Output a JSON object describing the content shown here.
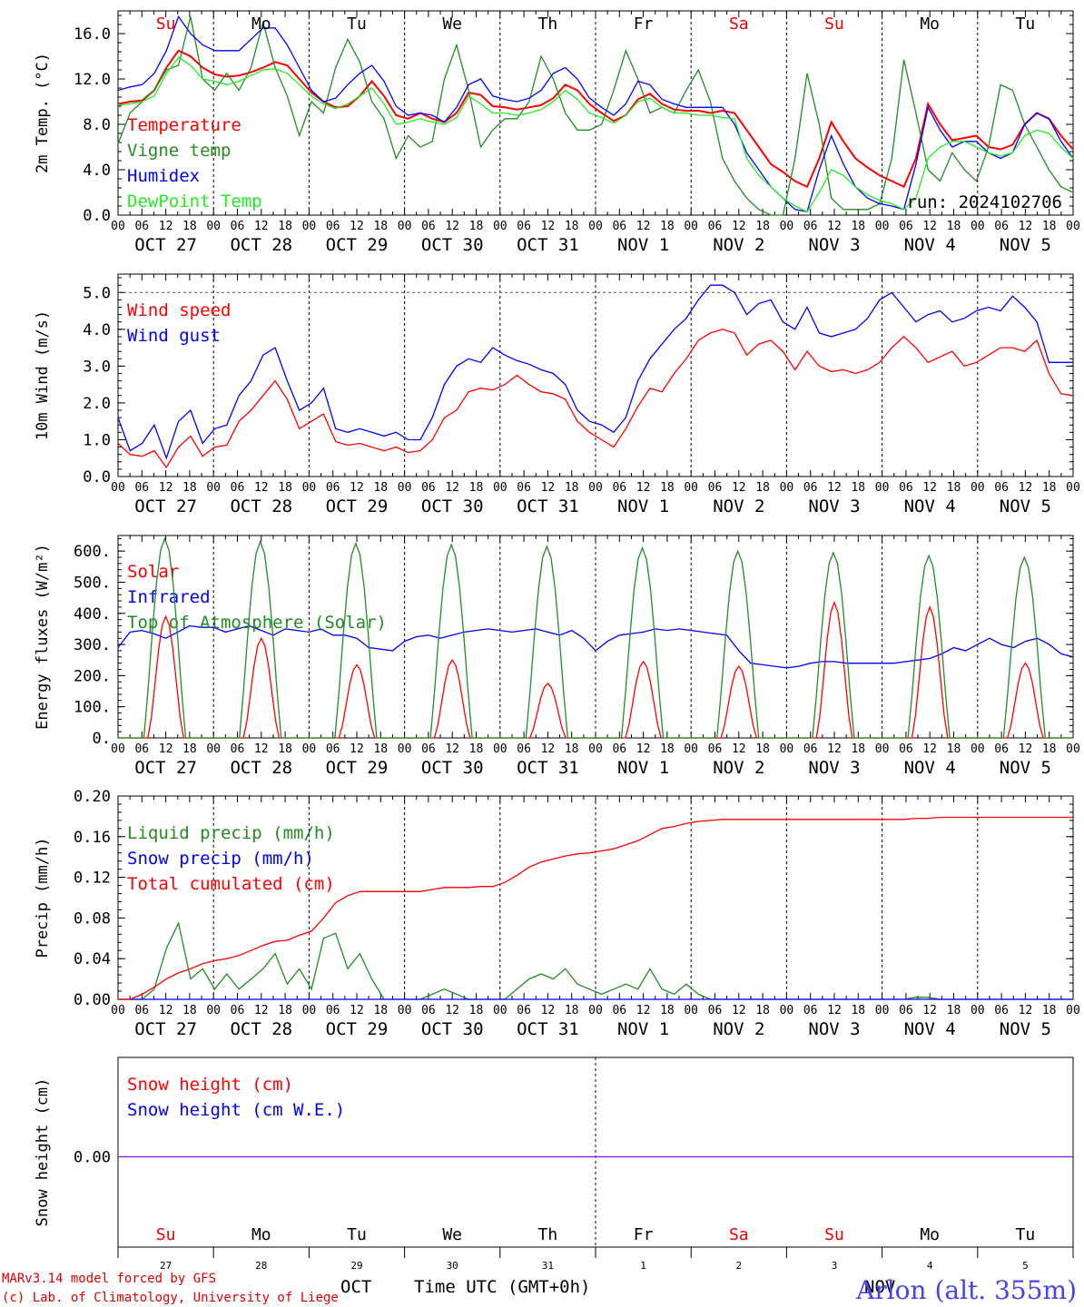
{
  "chart_data": [
    {
      "type": "line",
      "ylabel": "2m Temp. (°C)",
      "ylim": [
        0,
        18
      ],
      "yticks": [
        "0.0",
        "4.0",
        "8.0",
        "12.0",
        "16.0"
      ],
      "day_labels": [
        "Su",
        "Mo",
        "Tu",
        "We",
        "Th",
        "Fr",
        "Sa",
        "Su",
        "Mo",
        "Tu"
      ],
      "annotation": "run: 2024102706",
      "series": [
        {
          "name": "Temperature",
          "color": "#ff0000",
          "values": [
            9.8,
            10.0,
            10.1,
            11.0,
            13.0,
            14.5,
            14.0,
            13.0,
            12.4,
            12.2,
            12.3,
            12.6,
            13.0,
            13.5,
            13.2,
            12.0,
            10.8,
            10.0,
            9.5,
            9.6,
            10.5,
            11.8,
            10.5,
            8.8,
            8.5,
            9.0,
            8.5,
            8.2,
            9.0,
            10.8,
            10.6,
            9.6,
            9.5,
            9.3,
            9.5,
            9.7,
            10.3,
            11.5,
            11.0,
            9.8,
            9.0,
            8.3,
            8.8,
            10.2,
            10.7,
            9.8,
            9.3,
            9.2,
            9.2,
            9.0,
            9.2,
            9.0,
            7.5,
            6.0,
            4.5,
            3.8,
            3.0,
            2.5,
            5.0,
            8.2,
            6.5,
            5.0,
            4.2,
            3.5,
            3.0,
            2.5,
            5.0,
            9.8,
            8.0,
            6.6,
            6.8,
            7.0,
            6.0,
            5.8,
            6.2,
            8.0,
            9.0,
            8.5,
            7.0,
            5.8
          ]
        },
        {
          "name": "Vigne temp",
          "color": "#228b22",
          "values": [
            6.3,
            9.0,
            10.0,
            11.0,
            12.8,
            13.2,
            17.5,
            12.0,
            11.0,
            12.5,
            11.0,
            13.0,
            17.0,
            13.0,
            10.5,
            7.0,
            10.0,
            9.0,
            13.0,
            15.5,
            13.5,
            10.0,
            8.5,
            5.0,
            7.0,
            6.0,
            6.5,
            12.0,
            15.0,
            11.0,
            6.0,
            7.5,
            8.5,
            8.5,
            10.0,
            14.0,
            12.0,
            9.0,
            7.5,
            7.5,
            8.0,
            11.0,
            14.5,
            12.0,
            9.0,
            9.5,
            9.0,
            11.0,
            12.8,
            10.0,
            5.0,
            3.0,
            1.5,
            0.5,
            0.0,
            0.0,
            5.0,
            12.5,
            8.0,
            1.5,
            0.5,
            0.5,
            0.5,
            1.0,
            5.0,
            13.7,
            9.0,
            4.0,
            3.0,
            5.5,
            4.0,
            3.0,
            6.0,
            11.5,
            11.0,
            8.0,
            6.0,
            4.0,
            2.5,
            2.0
          ]
        },
        {
          "name": "Humidex",
          "color": "#0000ff",
          "values": [
            11.0,
            11.3,
            11.5,
            12.5,
            14.5,
            17.5,
            16.0,
            15.0,
            14.5,
            14.5,
            14.5,
            15.5,
            16.5,
            16.5,
            15.0,
            13.0,
            11.0,
            10.0,
            10.3,
            11.5,
            12.5,
            13.2,
            11.8,
            9.6,
            8.8,
            9.0,
            8.8,
            8.2,
            9.5,
            11.5,
            12.0,
            10.5,
            10.2,
            10.0,
            10.3,
            11.0,
            12.5,
            13.0,
            12.0,
            10.3,
            9.5,
            8.8,
            9.8,
            11.8,
            11.5,
            10.2,
            9.8,
            9.5,
            9.5,
            9.5,
            9.5,
            8.0,
            5.5,
            4.0,
            2.5,
            1.5,
            0.5,
            0.3,
            4.0,
            7.0,
            4.5,
            2.5,
            1.5,
            1.0,
            0.8,
            0.5,
            4.5,
            9.5,
            7.5,
            6.0,
            6.5,
            6.5,
            5.5,
            5.0,
            5.5,
            8.0,
            9.0,
            8.5,
            6.5,
            5.0
          ]
        },
        {
          "name": "DewPoint Temp",
          "color": "#22ee22",
          "values": [
            9.7,
            9.8,
            10.0,
            10.5,
            12.5,
            13.9,
            13.2,
            12.0,
            11.8,
            11.5,
            11.8,
            12.3,
            12.8,
            12.9,
            12.5,
            11.5,
            10.5,
            9.8,
            9.4,
            9.8,
            10.5,
            11.2,
            9.8,
            8.0,
            8.2,
            8.5,
            8.2,
            8.0,
            8.6,
            10.5,
            9.8,
            9.0,
            9.0,
            8.8,
            9.0,
            9.3,
            10.0,
            11.0,
            10.2,
            9.0,
            8.6,
            8.1,
            8.8,
            10.0,
            10.3,
            9.5,
            9.0,
            9.0,
            8.8,
            8.8,
            8.6,
            8.5,
            5.0,
            3.5,
            2.5,
            1.5,
            0.8,
            0.3,
            2.0,
            4.0,
            3.5,
            2.5,
            1.8,
            1.3,
            1.0,
            0.5,
            1.5,
            5.0,
            6.0,
            6.5,
            6.5,
            6.0,
            5.5,
            5.2,
            5.5,
            7.0,
            7.5,
            7.2,
            6.0,
            5.0
          ]
        }
      ]
    },
    {
      "type": "line",
      "ylabel": "10m Wind (m/s)",
      "ylim": [
        0,
        5.5
      ],
      "yticks": [
        "0.0",
        "1.0",
        "2.0",
        "3.0",
        "4.0",
        "5.0"
      ],
      "ref_line": 5.0,
      "series": [
        {
          "name": "Wind speed",
          "color": "#ff0000",
          "values": [
            0.9,
            0.6,
            0.55,
            0.7,
            0.25,
            0.8,
            1.1,
            0.55,
            0.8,
            0.85,
            1.5,
            1.8,
            2.2,
            2.6,
            2.1,
            1.3,
            1.5,
            1.7,
            0.95,
            0.85,
            0.9,
            0.8,
            0.7,
            0.8,
            0.65,
            0.7,
            1.0,
            1.6,
            1.8,
            2.3,
            2.4,
            2.35,
            2.5,
            2.75,
            2.5,
            2.3,
            2.25,
            2.1,
            1.5,
            1.2,
            1.0,
            0.8,
            1.3,
            1.9,
            2.4,
            2.3,
            2.8,
            3.2,
            3.7,
            3.9,
            4.0,
            3.9,
            3.3,
            3.6,
            3.7,
            3.4,
            2.9,
            3.4,
            3.0,
            2.85,
            2.9,
            2.8,
            2.9,
            3.1,
            3.5,
            3.8,
            3.5,
            3.1,
            3.25,
            3.4,
            3.0,
            3.1,
            3.3,
            3.5,
            3.5,
            3.4,
            3.7,
            2.8,
            2.25,
            2.2
          ]
        },
        {
          "name": "Wind gust",
          "color": "#0000ff",
          "values": [
            1.6,
            0.7,
            0.9,
            1.4,
            0.5,
            1.5,
            1.8,
            0.9,
            1.3,
            1.4,
            2.2,
            2.6,
            3.3,
            3.5,
            2.6,
            1.8,
            2.0,
            2.4,
            1.3,
            1.2,
            1.3,
            1.2,
            1.1,
            1.2,
            1.0,
            1.0,
            1.6,
            2.5,
            3.0,
            3.2,
            3.1,
            3.5,
            3.3,
            3.15,
            3.05,
            2.9,
            2.8,
            2.5,
            1.8,
            1.5,
            1.4,
            1.2,
            1.6,
            2.6,
            3.2,
            3.6,
            4.0,
            4.3,
            4.8,
            5.2,
            5.2,
            5.0,
            4.4,
            4.7,
            4.8,
            4.2,
            4.0,
            4.6,
            3.9,
            3.8,
            3.9,
            4.0,
            4.3,
            4.8,
            5.0,
            4.6,
            4.2,
            4.4,
            4.5,
            4.2,
            4.3,
            4.5,
            4.6,
            4.5,
            4.9,
            4.6,
            4.2,
            3.1,
            3.1,
            3.1
          ]
        }
      ]
    },
    {
      "type": "line",
      "ylabel": "Energy fluxes (W/m²)",
      "ylim": [
        0,
        650
      ],
      "yticks": [
        "0.",
        "100.",
        "200.",
        "300.",
        "400.",
        "500.",
        "600."
      ],
      "series": [
        {
          "name": "Solar",
          "color": "#ff0000",
          "peaks": [
            390,
            320,
            235,
            250,
            175,
            245,
            230,
            435,
            420,
            240
          ]
        },
        {
          "name": "Infrared",
          "color": "#0000ff",
          "values": [
            290,
            340,
            345,
            335,
            320,
            340,
            360,
            355,
            355,
            340,
            350,
            360,
            345,
            330,
            350,
            345,
            340,
            350,
            330,
            330,
            320,
            290,
            285,
            280,
            310,
            325,
            330,
            320,
            330,
            340,
            345,
            350,
            345,
            340,
            345,
            350,
            340,
            330,
            345,
            320,
            280,
            310,
            330,
            335,
            340,
            350,
            345,
            350,
            345,
            340,
            335,
            330,
            280,
            240,
            235,
            230,
            225,
            230,
            240,
            245,
            245,
            240,
            240,
            240,
            240,
            240,
            245,
            250,
            255,
            270,
            290,
            280,
            300,
            320,
            300,
            290,
            310,
            320,
            300,
            270,
            260
          ]
        },
        {
          "name": "Top of Atmosphere (Solar)",
          "color": "#228b22",
          "peaks": [
            640,
            630,
            625,
            620,
            615,
            610,
            600,
            595,
            585,
            580
          ]
        }
      ]
    },
    {
      "type": "line",
      "ylabel": "Precip (mm/h)",
      "ylim": [
        0,
        0.2
      ],
      "yticks": [
        "0.00",
        "0.04",
        "0.08",
        "0.12",
        "0.16",
        "0.20"
      ],
      "series": [
        {
          "name": "Liquid precip (mm/h)",
          "color": "#228b22",
          "values": [
            0.0,
            0.0,
            0.0,
            0.01,
            0.05,
            0.075,
            0.02,
            0.03,
            0.01,
            0.025,
            0.01,
            0.02,
            0.03,
            0.045,
            0.015,
            0.03,
            0.01,
            0.06,
            0.065,
            0.03,
            0.045,
            0.02,
            0.0,
            0.0,
            0.0,
            0.0,
            0.005,
            0.01,
            0.005,
            0.0,
            0.0,
            0.0,
            0.0,
            0.01,
            0.02,
            0.025,
            0.02,
            0.03,
            0.015,
            0.01,
            0.005,
            0.01,
            0.015,
            0.01,
            0.03,
            0.01,
            0.005,
            0.015,
            0.005,
            0.0,
            0.0,
            0.0,
            0.0,
            0.0,
            0.0,
            0.0,
            0.0,
            0.0,
            0.0,
            0.0,
            0.0,
            0.0,
            0.0,
            0.0,
            0.0,
            0.0,
            0.002,
            0.002,
            0.0,
            0.0,
            0.0,
            0.0,
            0.0,
            0.0,
            0.0,
            0.0,
            0.0,
            0.0,
            0.0,
            0.0
          ]
        },
        {
          "name": "Snow precip (mm/h)",
          "color": "#0000ff",
          "values": [
            0.0,
            0.0
          ]
        },
        {
          "name": "Total cumulated (cm)",
          "color": "#ff0000",
          "values": [
            0.0,
            0.0,
            0.005,
            0.012,
            0.02,
            0.026,
            0.03,
            0.035,
            0.038,
            0.04,
            0.043,
            0.048,
            0.053,
            0.057,
            0.058,
            0.063,
            0.067,
            0.08,
            0.095,
            0.102,
            0.106,
            0.106,
            0.106,
            0.106,
            0.106,
            0.106,
            0.108,
            0.11,
            0.11,
            0.11,
            0.111,
            0.111,
            0.115,
            0.122,
            0.13,
            0.135,
            0.138,
            0.141,
            0.143,
            0.144,
            0.146,
            0.148,
            0.152,
            0.156,
            0.162,
            0.168,
            0.17,
            0.173,
            0.175,
            0.176,
            0.177,
            0.177,
            0.177,
            0.177,
            0.177,
            0.177,
            0.177,
            0.177,
            0.177,
            0.177,
            0.177,
            0.177,
            0.177,
            0.177,
            0.177,
            0.177,
            0.178,
            0.178,
            0.179,
            0.179,
            0.179,
            0.179,
            0.179,
            0.179,
            0.179,
            0.179,
            0.179,
            0.179,
            0.179,
            0.179
          ]
        }
      ]
    },
    {
      "type": "line",
      "ylabel": "Snow height (cm)",
      "yticks": [
        "0.00"
      ],
      "day_labels": [
        "Su",
        "Mo",
        "Tu",
        "We",
        "Th",
        "Fr",
        "Sa",
        "Su",
        "Mo",
        "Tu"
      ],
      "day_numbers": [
        "27",
        "28",
        "29",
        "30",
        "31",
        "1",
        "2",
        "3",
        "4",
        "5"
      ],
      "series": [
        {
          "name": "Snow height (cm)",
          "color": "#ff0000",
          "values": [
            0,
            0
          ]
        },
        {
          "name": "Snow height (cm W.E.)",
          "color": "#0000ff",
          "values": [
            0,
            0
          ]
        }
      ]
    }
  ],
  "axis": {
    "hour_labels": [
      "00",
      "06",
      "12",
      "18"
    ],
    "last_hour_label": "00",
    "dates": [
      "OCT 27",
      "OCT 28",
      "OCT 29",
      "OCT 30",
      "OCT 31",
      "NOV  1",
      "NOV  2",
      "NOV  3",
      "NOV  4",
      "NOV  5"
    ],
    "weekend_color": "#ee0000",
    "weekday_color": "#000000"
  },
  "footer": {
    "line1": "MARv3.14 model forced by GFS",
    "line2": "(c) Lab. of Climatology, University of Liege",
    "month_left": "OCT",
    "month_right": "NOV",
    "xlabel": "Time UTC (GMT+0h)",
    "station": "Arlon (alt. 355m)"
  }
}
